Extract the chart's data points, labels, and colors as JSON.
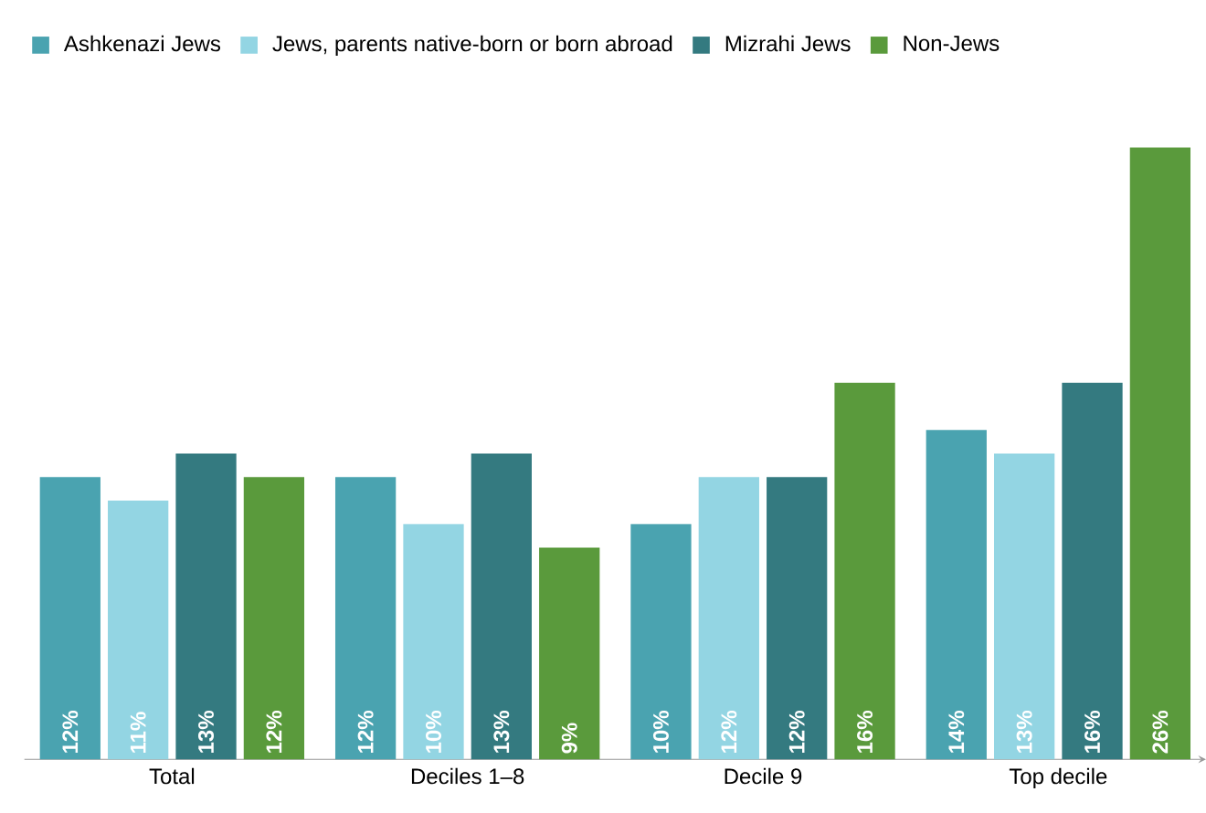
{
  "chart_data": {
    "type": "bar",
    "categories": [
      "Total",
      "Deciles 1–8",
      "Decile 9",
      "Top decile"
    ],
    "legend": "top",
    "series": [
      {
        "name": "Ashkenazi Jews",
        "color": "#4aa3b0",
        "values": [
          12,
          12,
          10,
          14
        ],
        "value_labels": [
          "12%",
          "12%",
          "10%",
          "14%"
        ]
      },
      {
        "name": "Jews, parents native-born or born abroad",
        "color": "#93d5e3",
        "values": [
          11,
          10,
          12,
          13
        ],
        "value_labels": [
          "11%",
          "10%",
          "12%",
          "13%"
        ]
      },
      {
        "name": "Mizrahi Jews",
        "color": "#347a80",
        "values": [
          13,
          13,
          12,
          16
        ],
        "value_labels": [
          "13%",
          "13%",
          "12%",
          "16%"
        ]
      },
      {
        "name": "Non-Jews",
        "color": "#5a9a3c",
        "values": [
          12,
          9,
          16,
          26
        ],
        "value_labels": [
          "12%",
          "9%",
          "16%",
          "26%"
        ]
      }
    ]
  }
}
